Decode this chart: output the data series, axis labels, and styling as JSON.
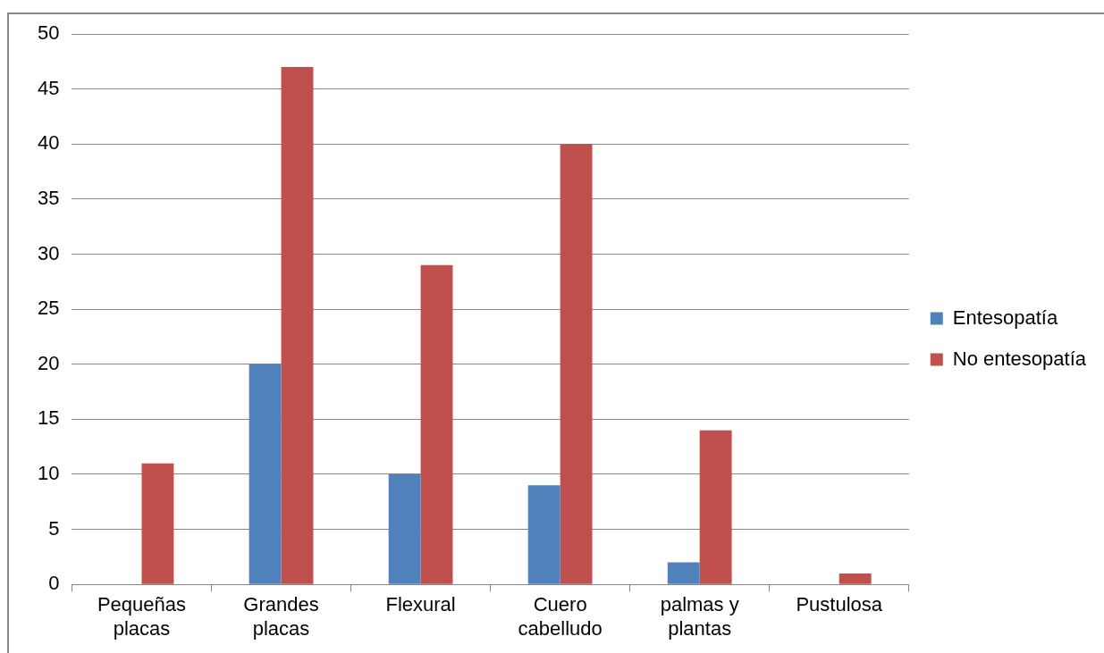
{
  "chart_data": {
    "type": "bar",
    "categories": [
      "Pequeñas placas",
      "Grandes placas",
      "Flexural",
      "Cuero cabelludo",
      "palmas y plantas",
      "Pustulosa"
    ],
    "series": [
      {
        "name": "Entesopatía",
        "color": "#4f81bd",
        "values": [
          0,
          20,
          10,
          9,
          2,
          0
        ]
      },
      {
        "name": "No entesopatía",
        "color": "#c0504d",
        "values": [
          11,
          47,
          29,
          40,
          14,
          1
        ]
      }
    ],
    "ylim": [
      0,
      50
    ],
    "yticks": [
      0,
      5,
      10,
      15,
      20,
      25,
      30,
      35,
      40,
      45,
      50
    ],
    "grid": "y",
    "legend": "right"
  }
}
